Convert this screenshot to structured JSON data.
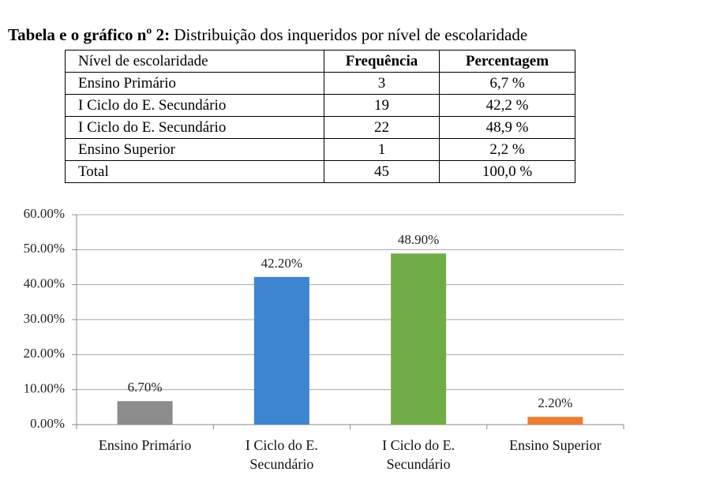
{
  "title": {
    "label": "Tabela e o gráfico nº 2:",
    "text": "Distribuição dos inqueridos por nível de escolaridade"
  },
  "table": {
    "header": [
      "Nível de escolaridade",
      "Frequência",
      "Percentagem"
    ],
    "rows": [
      [
        "Ensino Primário",
        "3",
        "6,7 %"
      ],
      [
        "I Ciclo do E. Secundário",
        "19",
        "42,2 %"
      ],
      [
        "I Ciclo do E. Secundário",
        "22",
        "48,9 %"
      ],
      [
        "Ensino Superior",
        "1",
        "2,2 %"
      ],
      [
        "Total",
        "45",
        "100,0 %"
      ]
    ]
  },
  "chart_data": {
    "type": "bar",
    "categories": [
      "Ensino Primário",
      "I Ciclo do E. Secundário",
      "I Ciclo do E. Secundário",
      "Ensino Superior"
    ],
    "values": [
      6.7,
      42.2,
      48.9,
      2.2
    ],
    "value_labels": [
      "6.70%",
      "42.20%",
      "48.90%",
      "2.20%"
    ],
    "colors": [
      "#8c8c8c",
      "#3d85cf",
      "#70ad47",
      "#ed7d31"
    ],
    "ylim": [
      0,
      60
    ],
    "yticks": [
      {
        "value": 0,
        "label": "0.00%"
      },
      {
        "value": 10,
        "label": "10.00%"
      },
      {
        "value": 20,
        "label": "20.00%"
      },
      {
        "value": 30,
        "label": "30.00%"
      },
      {
        "value": 40,
        "label": "40.00%"
      },
      {
        "value": 50,
        "label": "50.00%"
      },
      {
        "value": 60,
        "label": "60.00%"
      }
    ],
    "grid": true
  }
}
